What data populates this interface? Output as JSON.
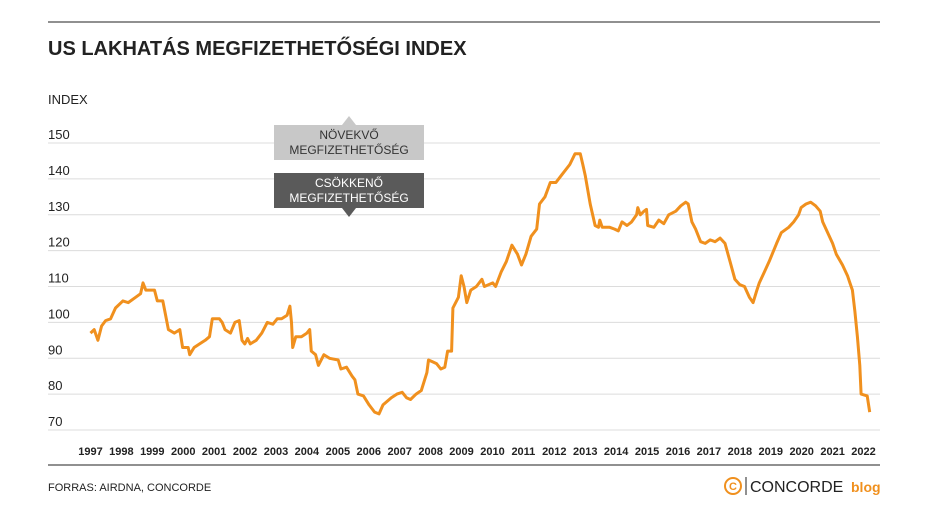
{
  "chart_data": {
    "type": "line",
    "title": "US LAKHATÁS MEGFIZETHETŐSÉGI INDEX",
    "y_label": "INDEX",
    "source": "FORRAS: AIRDNA, CONCORDE",
    "logo": {
      "mark": "C",
      "name": "CONCORDE",
      "suffix": "blog"
    },
    "annotations": [
      {
        "lines": [
          "NÖVEKVŐ",
          "MEGFIZETHETŐSÉG"
        ],
        "color": "#c8c8c8",
        "text_color": "#333333",
        "arrow": "up"
      },
      {
        "lines": [
          "CSÖKKENŐ",
          "MEGFIZETHETŐSÉG"
        ],
        "color": "#5a5a5a",
        "text_color": "#ffffff",
        "arrow": "down"
      }
    ],
    "xlim": [
      1996.5,
      2022.5
    ],
    "xticks": [
      1997,
      1998,
      1999,
      2000,
      2001,
      2002,
      2003,
      2004,
      2005,
      2006,
      2007,
      2008,
      2009,
      2010,
      2011,
      2012,
      2013,
      2014,
      2015,
      2016,
      2017,
      2018,
      2019,
      2020,
      2021,
      2022
    ],
    "ylim": [
      70,
      150
    ],
    "yticks": [
      70,
      80,
      90,
      100,
      110,
      120,
      130,
      140,
      150
    ],
    "grid": true,
    "series": [
      {
        "name": "INDEX",
        "color": "#f0901e",
        "x": [
          1997.0,
          1997.12,
          1997.24,
          1997.36,
          1997.49,
          1997.65,
          1997.81,
          1998.05,
          1998.22,
          1998.46,
          1998.62,
          1998.7,
          1998.79,
          1999.07,
          1999.16,
          1999.34,
          1999.43,
          1999.52,
          1999.71,
          1999.89,
          1999.98,
          2000.16,
          2000.21,
          2000.35,
          2000.53,
          2000.71,
          2000.85,
          2000.94,
          2001.17,
          2001.26,
          2001.35,
          2001.53,
          2001.67,
          2001.81,
          2001.9,
          2001.99,
          2002.08,
          2002.17,
          2002.36,
          2002.54,
          2002.72,
          2002.9,
          2003.04,
          2003.18,
          2003.36,
          2003.45,
          2003.5,
          2003.54,
          2003.64,
          2003.82,
          2004.0,
          2004.09,
          2004.14,
          2004.28,
          2004.37,
          2004.55,
          2004.73,
          2005.01,
          2005.1,
          2005.28,
          2005.46,
          2005.55,
          2005.65,
          2005.83,
          2006.01,
          2006.19,
          2006.33,
          2006.46,
          2006.73,
          2006.91,
          2007.08,
          2007.22,
          2007.35,
          2007.53,
          2007.7,
          2007.88,
          2007.93,
          2008.06,
          2008.19,
          2008.33,
          2008.46,
          2008.55,
          2008.68,
          2008.72,
          2008.9,
          2008.99,
          2009.08,
          2009.17,
          2009.3,
          2009.48,
          2009.66,
          2009.74,
          2010.01,
          2010.1,
          2010.28,
          2010.45,
          2010.63,
          2010.81,
          2010.94,
          2011.08,
          2011.25,
          2011.43,
          2011.52,
          2011.7,
          2011.87,
          2012.05,
          2012.23,
          2012.5,
          2012.67,
          2012.76,
          2012.84,
          2012.92,
          2013.0,
          2013.16,
          2013.32,
          2013.43,
          2013.47,
          2013.55,
          2013.79,
          2013.95,
          2014.07,
          2014.19,
          2014.35,
          2014.5,
          2014.66,
          2014.7,
          2014.78,
          2014.9,
          2014.98,
          2015.02,
          2015.22,
          2015.38,
          2015.54,
          2015.7,
          2015.93,
          2016.09,
          2016.25,
          2016.33,
          2016.45,
          2016.57,
          2016.73,
          2016.88,
          2017.04,
          2017.2,
          2017.36,
          2017.52,
          2017.68,
          2017.84,
          2018.0,
          2018.15,
          2018.31,
          2018.43,
          2018.55,
          2018.63,
          2018.79,
          2018.95,
          2019.19,
          2019.34,
          2019.58,
          2019.74,
          2019.9,
          2019.98,
          2020.14,
          2020.29,
          2020.45,
          2020.6,
          2020.68,
          2020.84,
          2021.0,
          2021.12,
          2021.32,
          2021.48,
          2021.56,
          2021.64,
          2021.72,
          2021.8,
          2021.88,
          2021.92,
          2022.12,
          2022.2
        ],
        "values": [
          97,
          98,
          95,
          99,
          100.5,
          101,
          104,
          106,
          105.5,
          107,
          108,
          111,
          109,
          109,
          106,
          106,
          102,
          98,
          97,
          98,
          93,
          93,
          91,
          93,
          94,
          95,
          96,
          101,
          101,
          100,
          98,
          97,
          100,
          100.5,
          95,
          94,
          95.5,
          94,
          95,
          97,
          100,
          99.5,
          101,
          101,
          102,
          104.5,
          100,
          93,
          96,
          96,
          97,
          98,
          92,
          91,
          88,
          91,
          90,
          89.5,
          87,
          87.5,
          85,
          84,
          80,
          79.5,
          77,
          75,
          74.5,
          77,
          79,
          80,
          80.5,
          79,
          78.5,
          80,
          81,
          86,
          89.5,
          89,
          88.5,
          87,
          87.5,
          92,
          92,
          104,
          107,
          113,
          110,
          105.5,
          109,
          110,
          112,
          110,
          111,
          110,
          114,
          117,
          121.5,
          119,
          116,
          119,
          124,
          126,
          133,
          135,
          139,
          139,
          141,
          144,
          147,
          147,
          147,
          144,
          141,
          133,
          127,
          126.5,
          128.5,
          126.5,
          126.5,
          126,
          125.5,
          128,
          127,
          128,
          130,
          132,
          130,
          131,
          131.5,
          127,
          126.5,
          128.5,
          127.5,
          130,
          131,
          132.5,
          133.5,
          133,
          128,
          126,
          122.5,
          122,
          123,
          122.5,
          123.5,
          122,
          117,
          112,
          110.5,
          110,
          107,
          105.5,
          109,
          111,
          114,
          117,
          122,
          125,
          126.5,
          128,
          130,
          132,
          133,
          133.5,
          132.5,
          131,
          128,
          125,
          122,
          119,
          116,
          113,
          111,
          109,
          103,
          96,
          88,
          80,
          79.5,
          75
        ]
      }
    ]
  }
}
